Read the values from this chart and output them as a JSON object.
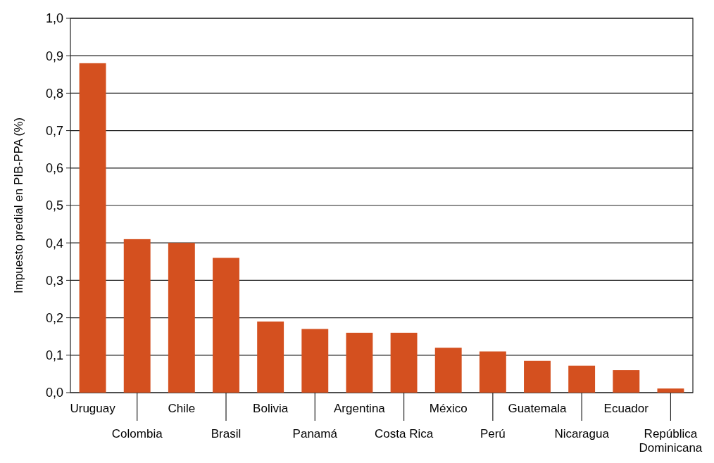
{
  "chart_data": {
    "type": "bar",
    "ylabel": "Impuesto predial en PIB-PPA (%)",
    "categories": [
      "Uruguay",
      "Colombia",
      "Chile",
      "Brasil",
      "Bolivia",
      "Panamá",
      "Argentina",
      "Costa Rica",
      "México",
      "Perú",
      "Guatemala",
      "Nicaragua",
      "Ecuador",
      "República Dominicana"
    ],
    "values": [
      0.88,
      0.41,
      0.4,
      0.36,
      0.19,
      0.17,
      0.16,
      0.16,
      0.12,
      0.11,
      0.085,
      0.072,
      0.06,
      0.011
    ],
    "color": "#d4501f",
    "ylim": [
      0,
      1
    ],
    "yticks": [
      {
        "value": 0,
        "label": "0,0"
      },
      {
        "value": 0.1,
        "label": "0,1"
      },
      {
        "value": 0.2,
        "label": "0,2"
      },
      {
        "value": 0.3,
        "label": "0,3"
      },
      {
        "value": 0.4,
        "label": "0,4"
      },
      {
        "value": 0.5,
        "label": "0,5"
      },
      {
        "value": 0.6,
        "label": "0,6"
      },
      {
        "value": 0.7,
        "label": "0,7"
      },
      {
        "value": 0.8,
        "label": "0,8"
      },
      {
        "value": 0.9,
        "label": "0,9"
      },
      {
        "value": 1,
        "label": "1,0"
      }
    ],
    "grid": "y"
  }
}
